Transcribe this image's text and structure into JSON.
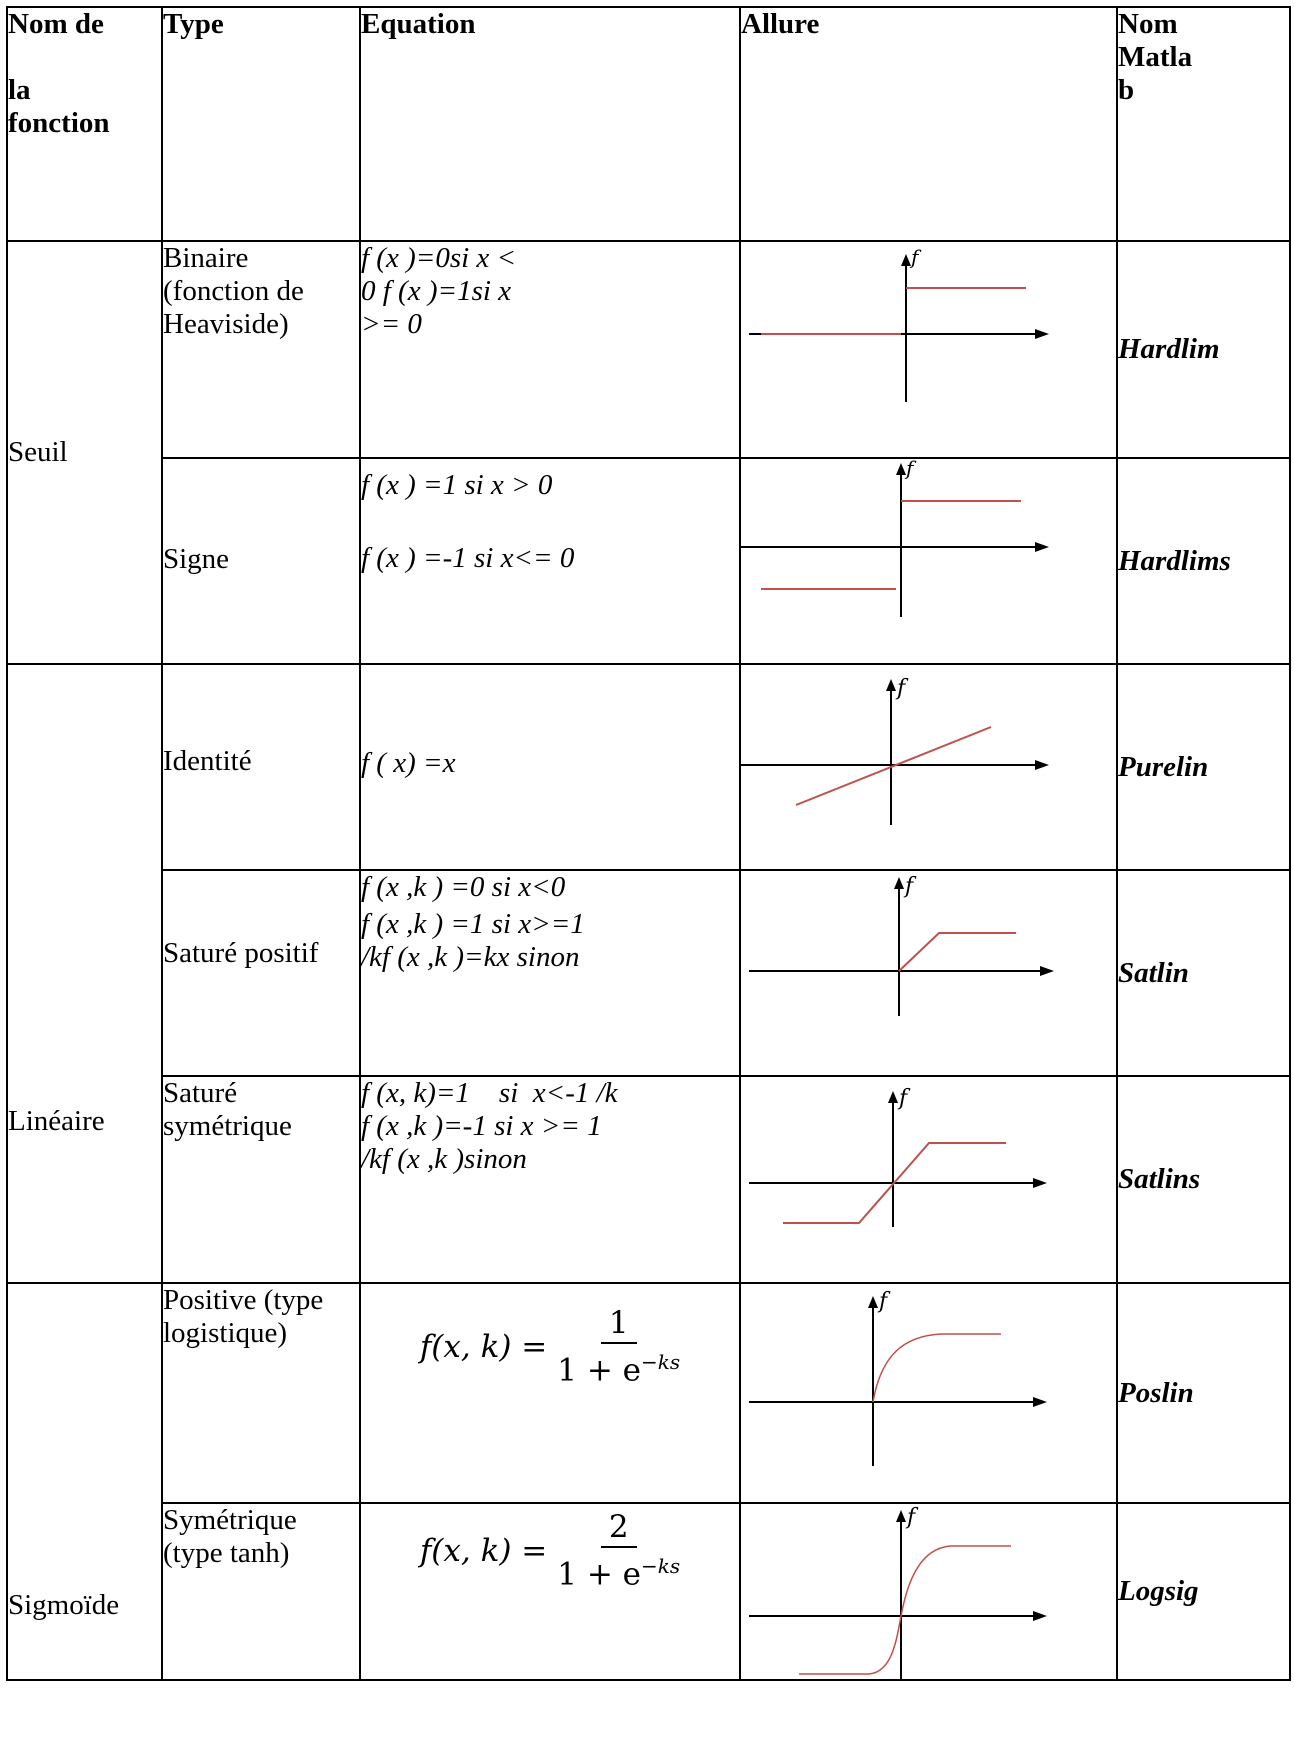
{
  "headers": {
    "name_l1": "Nom de",
    "name_l2": "la",
    "name_l3": "fonction",
    "type": "Type",
    "equation": "Equation",
    "allure": "Allure",
    "matlab_l1": "Nom",
    "matlab_l2": "Matla",
    "matlab_l3": "b"
  },
  "groups": {
    "seuil": "Seuil",
    "lineaire": "Linéaire",
    "sigmoide": "Sigmoïde"
  },
  "rows": [
    {
      "type": "Binaire (fonction de Heaviside)",
      "eq": [
        "f (x )=0si x <",
        "0 f (x )=1si x",
        ">= 0"
      ],
      "matlab": "Hardlim",
      "plot": "heaviside"
    },
    {
      "type": "Signe",
      "eq": [
        "f (x ) =1 si x > 0",
        "f (x ) =-1 si x<= 0"
      ],
      "matlab": "Hardlims",
      "plot": "sign"
    },
    {
      "type": "Identité",
      "eq": [
        "f ( x) =x"
      ],
      "matlab": "Purelin",
      "plot": "identity"
    },
    {
      "type": "Saturé positif",
      "eq": [
        "f (x ,k ) =0 si x<0",
        "f (x ,k ) =1 si x>=1",
        "/kf (x ,k )=kx sinon"
      ],
      "matlab": "Satlin",
      "plot": "satlin"
    },
    {
      "type": "Saturé symétrique",
      "eq": [
        "f (x, k)=1    si  x<-1 /k",
        "f (x ,k )=-1 si x >= 1",
        "/kf (x ,k )sinon"
      ],
      "matlab": "Satlins",
      "plot": "satlins"
    },
    {
      "type": "Positive (type logistique)",
      "eq_lhs": "f(x, k) =",
      "eq_num": "1",
      "eq_den": "1 + e",
      "eq_exp": "−ks",
      "matlab": "Poslin",
      "plot": "logistic"
    },
    {
      "type": "Symétrique (type tanh)",
      "eq_lhs": "f(x, k) =",
      "eq_num": "2",
      "eq_den": "1 + e",
      "eq_exp": "−ks",
      "matlab": "Logsig",
      "plot": "tanh"
    }
  ],
  "axis_label": "f",
  "colors": {
    "curve": "#c0504d",
    "axis": "#000000"
  }
}
